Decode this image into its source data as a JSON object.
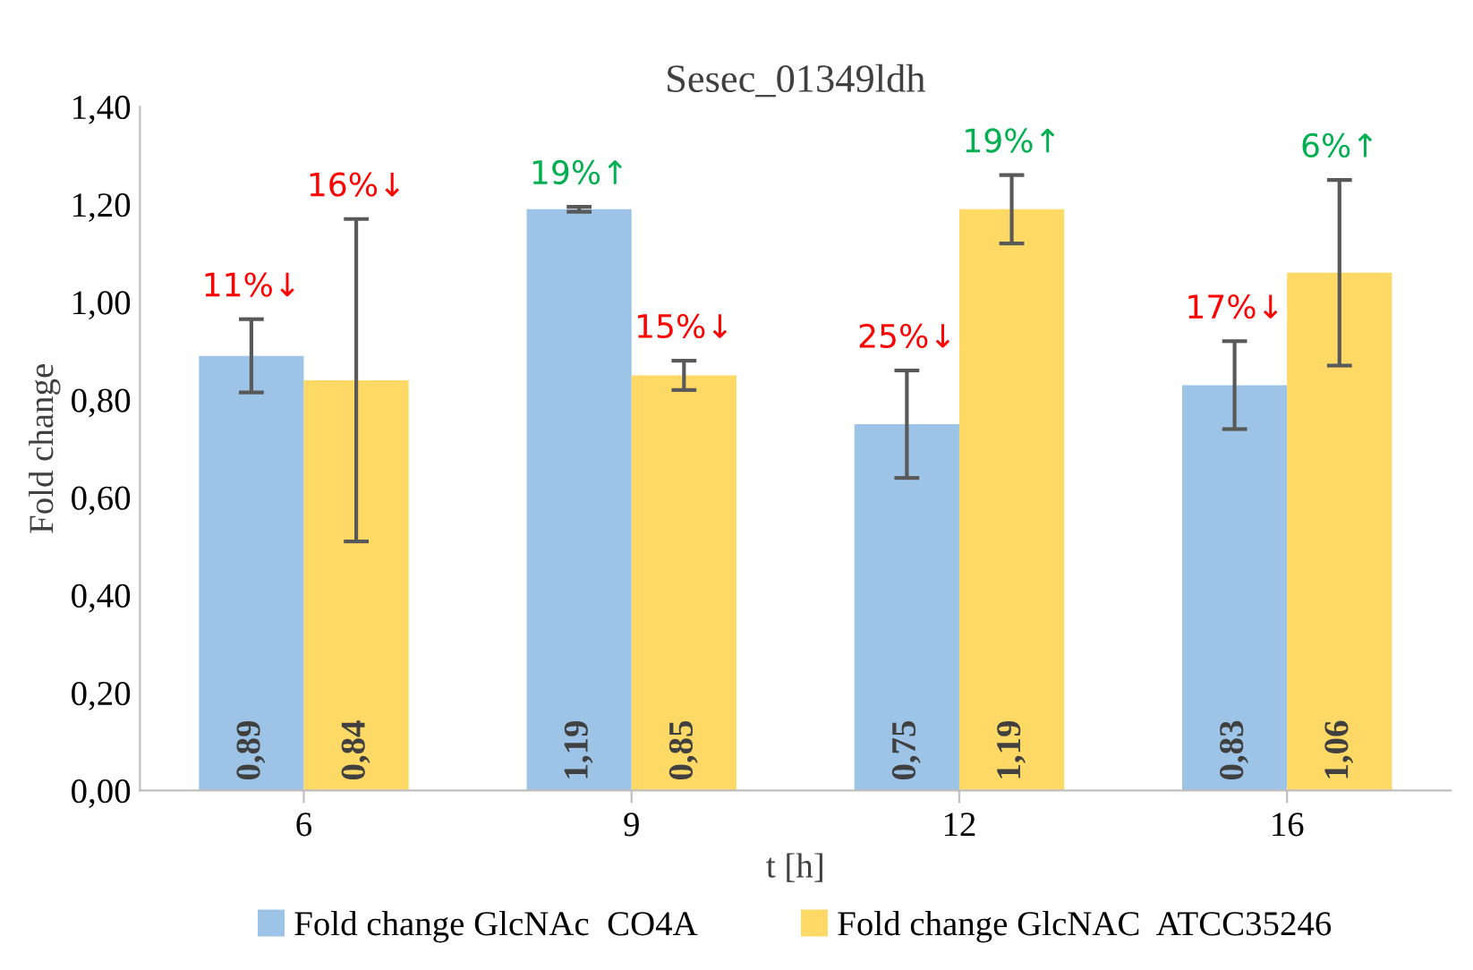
{
  "chart_data": {
    "type": "bar",
    "title": "Sesec_01349ldh",
    "xlabel": "t [h]",
    "ylabel": "Fold change",
    "categories": [
      "6",
      "9",
      "12",
      "16"
    ],
    "series": [
      {
        "name": "Fold change GlcNAc  CO4A",
        "color": "#9dc3e6",
        "values": [
          0.89,
          1.19,
          0.75,
          0.83
        ],
        "errors": [
          0.075,
          0.005,
          0.11,
          0.09
        ],
        "value_labels": [
          "0,89",
          "1,19",
          "0,75",
          "0,83"
        ]
      },
      {
        "name": "Fold change GlcNAC  ATCC35246",
        "color": "#ffd966",
        "values": [
          0.84,
          0.85,
          1.19,
          1.06
        ],
        "errors": [
          0.33,
          0.03,
          0.07,
          0.19
        ],
        "value_labels": [
          "0,84",
          "0,85",
          "1,19",
          "1,06"
        ]
      }
    ],
    "ylim": [
      0,
      1.4
    ],
    "yticks": [
      {
        "value": 0,
        "label": "0,00"
      },
      {
        "value": 0.2,
        "label": "0,20"
      },
      {
        "value": 0.4,
        "label": "0,40"
      },
      {
        "value": 0.6,
        "label": "0,60"
      },
      {
        "value": 0.8,
        "label": "0,80"
      },
      {
        "value": 1.0,
        "label": "1,00"
      },
      {
        "value": 1.2,
        "label": "1,20"
      },
      {
        "value": 1.4,
        "label": "1,40"
      }
    ],
    "annotations": [
      "11%↓",
      "16%↓",
      "19%↑",
      "15%↓",
      "25%↓",
      "19%↑",
      "17%↓",
      "6%↑"
    ],
    "legend": "bottom",
    "grid": false
  }
}
